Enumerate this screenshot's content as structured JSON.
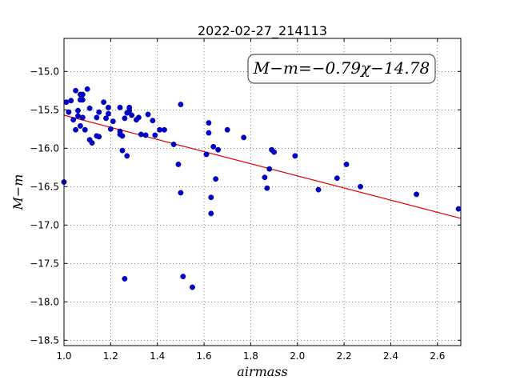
{
  "chart_data": {
    "type": "scatter",
    "title": "2022-02-27_214113",
    "xlabel": "airmass",
    "ylabel": "M−m",
    "xlim": [
      1.0,
      2.7
    ],
    "ylim": [
      -18.57,
      -14.57
    ],
    "y_inverted": true,
    "grid": true,
    "xticks": [
      1.0,
      1.2,
      1.4,
      1.6,
      1.8,
      2.0,
      2.2,
      2.4,
      2.6
    ],
    "xtick_labels": [
      "1.0",
      "1.2",
      "1.4",
      "1.6",
      "1.8",
      "2.0",
      "2.2",
      "2.4",
      "2.6"
    ],
    "yticks": [
      -15.0,
      -15.5,
      -16.0,
      -16.5,
      -17.0,
      -17.5,
      -18.0,
      -18.5
    ],
    "ytick_labels": [
      "−15.0",
      "−15.5",
      "−16.0",
      "−16.5",
      "−17.0",
      "−17.5",
      "−18.0",
      "−18.5"
    ],
    "annotation": "M−m=−0.79χ−14.78",
    "point_color": "#0000cc",
    "fit_color": "#e00000",
    "fit": {
      "slope": -0.79,
      "intercept": -14.78
    },
    "points": [
      [
        1.0,
        -16.44
      ],
      [
        1.01,
        -15.4
      ],
      [
        1.02,
        -15.53
      ],
      [
        1.03,
        -15.38
      ],
      [
        1.04,
        -15.63
      ],
      [
        1.05,
        -15.76
      ],
      [
        1.05,
        -15.25
      ],
      [
        1.06,
        -15.51
      ],
      [
        1.06,
        -15.58
      ],
      [
        1.07,
        -15.71
      ],
      [
        1.07,
        -15.37
      ],
      [
        1.07,
        -15.3
      ],
      [
        1.08,
        -15.6
      ],
      [
        1.08,
        -15.37
      ],
      [
        1.08,
        -15.3
      ],
      [
        1.09,
        -15.76
      ],
      [
        1.1,
        -15.23
      ],
      [
        1.11,
        -15.48
      ],
      [
        1.11,
        -15.89
      ],
      [
        1.12,
        -15.93
      ],
      [
        1.14,
        -15.84
      ],
      [
        1.14,
        -15.6
      ],
      [
        1.15,
        -15.53
      ],
      [
        1.15,
        -15.85
      ],
      [
        1.17,
        -15.4
      ],
      [
        1.18,
        -15.61
      ],
      [
        1.19,
        -15.55
      ],
      [
        1.19,
        -15.47
      ],
      [
        1.2,
        -15.75
      ],
      [
        1.21,
        -15.65
      ],
      [
        1.24,
        -15.47
      ],
      [
        1.24,
        -15.78
      ],
      [
        1.24,
        -15.82
      ],
      [
        1.25,
        -16.03
      ],
      [
        1.25,
        -15.84
      ],
      [
        1.26,
        -15.61
      ],
      [
        1.27,
        -15.54
      ],
      [
        1.27,
        -16.1
      ],
      [
        1.28,
        -15.51
      ],
      [
        1.28,
        -15.47
      ],
      [
        1.29,
        -15.57
      ],
      [
        1.31,
        -15.63
      ],
      [
        1.32,
        -15.6
      ],
      [
        1.33,
        -15.82
      ],
      [
        1.35,
        -15.83
      ],
      [
        1.36,
        -15.56
      ],
      [
        1.38,
        -15.64
      ],
      [
        1.39,
        -15.83
      ],
      [
        1.41,
        -15.76
      ],
      [
        1.43,
        -15.76
      ],
      [
        1.47,
        -15.95
      ],
      [
        1.49,
        -16.21
      ],
      [
        1.5,
        -15.43
      ],
      [
        1.5,
        -16.58
      ],
      [
        1.51,
        -17.67
      ],
      [
        1.55,
        -17.81
      ],
      [
        1.61,
        -16.08
      ],
      [
        1.62,
        -15.67
      ],
      [
        1.62,
        -15.8
      ],
      [
        1.63,
        -16.64
      ],
      [
        1.63,
        -16.85
      ],
      [
        1.64,
        -15.98
      ],
      [
        1.65,
        -16.4
      ],
      [
        1.66,
        -16.02
      ],
      [
        1.7,
        -15.76
      ],
      [
        1.77,
        -15.86
      ],
      [
        1.86,
        -16.38
      ],
      [
        1.87,
        -16.52
      ],
      [
        1.88,
        -16.27
      ],
      [
        1.89,
        -16.02
      ],
      [
        1.9,
        -16.05
      ],
      [
        1.99,
        -16.1
      ],
      [
        2.09,
        -16.54
      ],
      [
        2.17,
        -16.39
      ],
      [
        2.21,
        -16.21
      ],
      [
        2.27,
        -16.5
      ],
      [
        2.51,
        -16.6
      ],
      [
        2.69,
        -16.79
      ],
      [
        1.26,
        -17.7
      ]
    ]
  }
}
